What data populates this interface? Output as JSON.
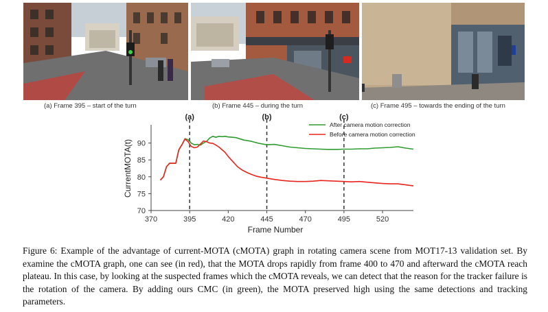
{
  "photos": [
    {
      "caption": "(a) Frame 395 –  start of the turn",
      "icon": "street-scene-photo"
    },
    {
      "caption": "(b) Frame 445 – during the turn",
      "icon": "street-scene-photo"
    },
    {
      "caption": "(c) Frame 495 – towards the ending of the turn",
      "icon": "building-facade-photo"
    }
  ],
  "chart_data": {
    "type": "line",
    "xlabel": "Frame Number",
    "ylabel": "CurrentMOTA(t)",
    "xlim": [
      370,
      540
    ],
    "ylim": [
      70,
      95
    ],
    "xticks": [
      370,
      395,
      420,
      445,
      470,
      495,
      520
    ],
    "yticks": [
      70,
      75,
      80,
      85,
      90
    ],
    "markers": [
      {
        "x": 395,
        "label": "(a)"
      },
      {
        "x": 445,
        "label": "(b)"
      },
      {
        "x": 495,
        "label": "(c)"
      }
    ],
    "legend_position": "top-right",
    "series": [
      {
        "name": "After camera motion correction",
        "color": "#2e9b30",
        "x": [
          376,
          378,
          380,
          382,
          384,
          386,
          388,
          390,
          392,
          394,
          396,
          398,
          400,
          402,
          404,
          406,
          408,
          410,
          412,
          414,
          416,
          418,
          420,
          425,
          430,
          435,
          440,
          445,
          450,
          455,
          460,
          465,
          470,
          475,
          480,
          485,
          490,
          495,
          500,
          505,
          510,
          515,
          520,
          525,
          530,
          535,
          540
        ],
        "values": [
          79,
          80,
          83,
          84,
          84,
          84,
          88,
          89.5,
          91.3,
          91,
          90,
          89.5,
          89.6,
          89.4,
          90,
          90.5,
          91.5,
          92,
          91.7,
          92,
          91.9,
          92,
          91.8,
          91.6,
          90.9,
          90.5,
          89.9,
          89.5,
          89.6,
          89.2,
          88.8,
          88.6,
          88.4,
          88.3,
          88.2,
          88.1,
          88.1,
          88.2,
          88.2,
          88.3,
          88.3,
          88.5,
          88.6,
          88.7,
          88.9,
          88.5,
          88.2
        ]
      },
      {
        "name": "Before camera motion correction",
        "color": "#e8231c",
        "x": [
          376,
          378,
          380,
          382,
          384,
          386,
          388,
          390,
          392,
          394,
          396,
          398,
          400,
          402,
          404,
          406,
          408,
          410,
          412,
          414,
          416,
          418,
          420,
          423,
          426,
          429,
          432,
          435,
          438,
          441,
          445,
          450,
          455,
          460,
          465,
          470,
          475,
          480,
          485,
          490,
          495,
          500,
          505,
          510,
          515,
          520,
          525,
          530,
          535,
          540
        ],
        "values": [
          79,
          80,
          83,
          84,
          84,
          84,
          88,
          89.5,
          91.2,
          90.4,
          89,
          88.6,
          88.8,
          89.7,
          90.6,
          90.4,
          90,
          89.9,
          89.4,
          88.8,
          88,
          87.2,
          86,
          84.5,
          83,
          82,
          81.3,
          80.7,
          80.2,
          79.9,
          79.6,
          79.2,
          78.9,
          78.7,
          78.6,
          78.6,
          78.7,
          78.9,
          78.8,
          78.7,
          78.6,
          78.5,
          78.6,
          78.4,
          78.2,
          78,
          77.9,
          77.9,
          77.6,
          77.3
        ]
      }
    ]
  },
  "figure_caption": "Figure 6: Example of the advantage of current-MOTA (cMOTA) graph in rotating camera scene from MOT17-13 validation set. By examine the cMOTA graph, one can see (in red), that the MOTA drops rapidly from frame 400 to 470 and afterward the cMOTA reach plateau. In this case, by looking at the suspected frames which the cMOTA reveals, we can detect that the reason for the tracker failure is the rotation of the camera. By adding ours CMC (in green), the MOTA preserved high using the same detections and tracking parameters."
}
